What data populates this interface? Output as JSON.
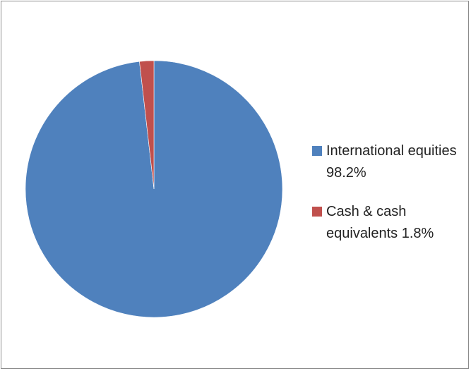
{
  "chart_data": {
    "type": "pie",
    "title": "",
    "legend_placement": "right",
    "slices": [
      {
        "label": "International equities 98.2%",
        "value": 98.2,
        "color": "#4f81bd"
      },
      {
        "label": "Cash & cash equivalents 1.8%",
        "value": 1.8,
        "color": "#c0504d"
      }
    ],
    "legend": {
      "items": [
        "International equities 98.2%",
        "Cash & cash equivalents 1.8%"
      ]
    }
  }
}
